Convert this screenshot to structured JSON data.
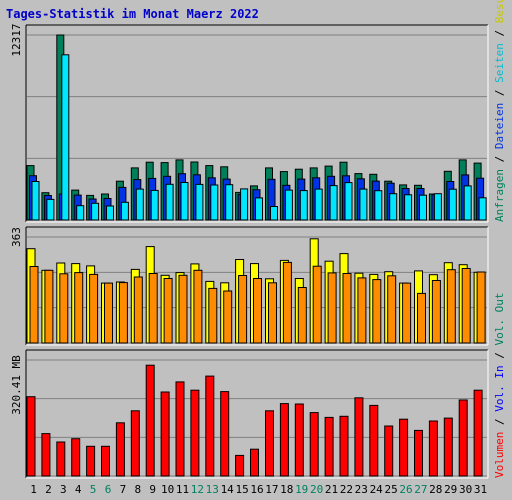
{
  "title": "Tages-Statistik im Monat Maerz 2022",
  "colors": {
    "anfragen": "#00805a",
    "dateien": "#0033e6",
    "seiten": "#00e6ff",
    "besuche": "#ffff00",
    "rechner": "#ff8c00",
    "volumen": "#ff0000",
    "day_normal": "#000000",
    "day_weekend": "#008060",
    "panel_bg": "#c0c0c0",
    "grid": "#808080"
  },
  "chart_data": [
    {
      "type": "bar",
      "title": "",
      "ylabel_max": "12317",
      "ylim": [
        0,
        12317
      ],
      "grid": true,
      "legend": {
        "position": "right",
        "items": [
          {
            "key": "anfragen",
            "label": "Anfragen"
          },
          {
            "key": "sep1",
            "label": " / "
          },
          {
            "key": "dateien",
            "label": "Dateien"
          },
          {
            "key": "sep2",
            "label": " / "
          },
          {
            "key": "seiten",
            "label": "Seiten"
          },
          {
            "key": "sep3",
            "label": " / "
          },
          {
            "key": "besuche",
            "label": "Besuche"
          },
          {
            "key": "sep4",
            "label": " / "
          },
          {
            "key": "rechner",
            "label": "Rechner"
          }
        ]
      },
      "series": [
        {
          "key": "anfragen",
          "values": [
            3620,
            1820,
            12317,
            1990,
            1640,
            1730,
            2580,
            3470,
            3850,
            3820,
            4000,
            3860,
            3620,
            3540,
            1840,
            2270,
            3470,
            3220,
            3380,
            3470,
            3590,
            3850,
            3090,
            3040,
            2580,
            2340,
            2310,
            1730,
            3240,
            4000,
            3790
          ]
        },
        {
          "key": "dateien",
          "values": [
            2950,
            1630,
            1730,
            1660,
            1400,
            1430,
            2170,
            2690,
            2770,
            2910,
            3080,
            3010,
            2810,
            2720,
            1710,
            2020,
            2710,
            2310,
            2720,
            2810,
            2910,
            2940,
            2740,
            2590,
            2450,
            2100,
            2100,
            1690,
            2560,
            3000,
            2780
          ]
        },
        {
          "key": "seiten",
          "values": [
            2560,
            1370,
            11000,
            950,
            1110,
            930,
            1180,
            2060,
            1970,
            2380,
            2500,
            2370,
            2330,
            2350,
            2070,
            1470,
            900,
            1990,
            1960,
            2060,
            2290,
            2490,
            2060,
            1950,
            1750,
            1680,
            1650,
            1750,
            2050,
            2270,
            1480
          ]
        }
      ]
    },
    {
      "type": "bar",
      "title": "",
      "ylabel_max": "363",
      "ylim": [
        0,
        363
      ],
      "grid": true,
      "series": [
        {
          "key": "besuche",
          "values": [
            323,
            249,
            274,
            272,
            264,
            205,
            209,
            252,
            330,
            232,
            241,
            271,
            211,
            206,
            286,
            272,
            220,
            283,
            221,
            357,
            280,
            306,
            239,
            235,
            244,
            205,
            247,
            234,
            275,
            268,
            242
          ]
        },
        {
          "key": "rechner",
          "values": [
            262,
            249,
            237,
            241,
            235,
            205,
            207,
            226,
            238,
            221,
            232,
            249,
            187,
            178,
            231,
            221,
            206,
            276,
            190,
            263,
            240,
            238,
            223,
            217,
            230,
            205,
            170,
            214,
            251,
            255,
            243
          ]
        }
      ]
    },
    {
      "type": "bar",
      "title": "",
      "ylabel_max": "320.41 MB",
      "ylim": [
        0,
        320.41
      ],
      "grid": true,
      "legend": {
        "position": "right",
        "items": [
          {
            "key": "volumen",
            "label": "Volumen"
          },
          {
            "key": "sep1",
            "label": " / "
          },
          {
            "key": "vol_in",
            "label": "Vol. In"
          },
          {
            "key": "sep2",
            "label": " / "
          },
          {
            "key": "vol_out",
            "label": "Vol. Out"
          }
        ]
      },
      "series": [
        {
          "key": "volumen",
          "values": [
            219,
            117,
            94,
            103,
            82,
            82,
            147,
            180,
            306,
            232,
            260,
            237,
            276,
            233,
            57,
            74,
            180,
            200,
            199,
            175,
            162,
            165,
            216,
            195,
            138,
            157,
            126,
            152,
            160,
            210,
            237
          ]
        }
      ]
    }
  ],
  "x_labels": [
    "1",
    "2",
    "3",
    "4",
    "5",
    "6",
    "7",
    "8",
    "9",
    "10",
    "11",
    "12",
    "13",
    "14",
    "15",
    "16",
    "17",
    "18",
    "19",
    "20",
    "21",
    "22",
    "23",
    "24",
    "25",
    "26",
    "27",
    "28",
    "29",
    "30",
    "31"
  ],
  "weekend_days": [
    5,
    6,
    12,
    13,
    19,
    20,
    26,
    27
  ]
}
